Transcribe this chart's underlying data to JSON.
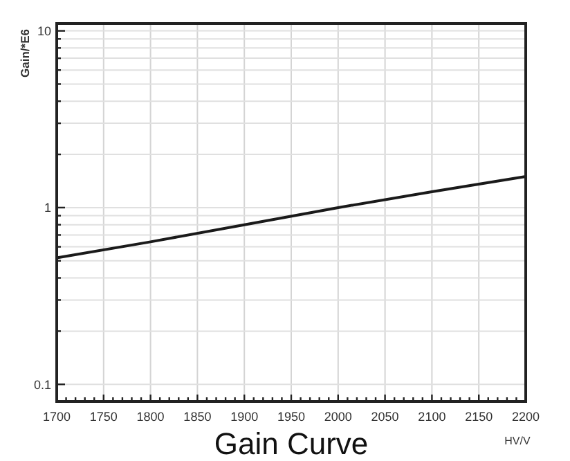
{
  "chart_data": {
    "type": "line",
    "title": "Gain Curve",
    "xlabel": "HV/V",
    "ylabel": "Gain/*E6",
    "x": [
      1700,
      1800,
      1900,
      2000,
      2100,
      2200
    ],
    "series": [
      {
        "color": "#1a1a1a",
        "values": [
          0.52,
          0.64,
          0.8,
          1.0,
          1.23,
          1.5
        ]
      }
    ],
    "xlim": [
      1700,
      2200
    ],
    "xticks": [
      1700,
      {
        "value": 1710,
        "label": null
      },
      {
        "value": 1720,
        "label": null
      },
      {
        "value": 1730,
        "label": null
      },
      {
        "value": 1740,
        "label": null
      },
      1750,
      {
        "value": 1760,
        "label": null
      },
      {
        "value": 1770,
        "label": null
      },
      {
        "value": 1780,
        "label": null
      },
      {
        "value": 1790,
        "label": null
      },
      1800,
      {
        "value": 1810,
        "label": null
      },
      {
        "value": 1820,
        "label": null
      },
      {
        "value": 1830,
        "label": null
      },
      {
        "value": 1840,
        "label": null
      },
      1850,
      {
        "value": 1860,
        "label": null
      },
      {
        "value": 1870,
        "label": null
      },
      {
        "value": 1880,
        "label": null
      },
      {
        "value": 1890,
        "label": null
      },
      1900,
      {
        "value": 1910,
        "label": null
      },
      {
        "value": 1920,
        "label": null
      },
      {
        "value": 1930,
        "label": null
      },
      {
        "value": 1940,
        "label": null
      },
      1950,
      {
        "value": 1960,
        "label": null
      },
      {
        "value": 1970,
        "label": null
      },
      {
        "value": 1980,
        "label": null
      },
      {
        "value": 1990,
        "label": null
      },
      2000,
      {
        "value": 2010,
        "label": null
      },
      {
        "value": 2020,
        "label": null
      },
      {
        "value": 2030,
        "label": null
      },
      {
        "value": 2040,
        "label": null
      },
      2050,
      {
        "value": 2060,
        "label": null
      },
      {
        "value": 2070,
        "label": null
      },
      {
        "value": 2080,
        "label": null
      },
      {
        "value": 2090,
        "label": null
      },
      2100,
      {
        "value": 2110,
        "label": null
      },
      {
        "value": 2120,
        "label": null
      },
      {
        "value": 2130,
        "label": null
      },
      {
        "value": 2140,
        "label": null
      },
      2150,
      {
        "value": 2160,
        "label": null
      },
      {
        "value": 2170,
        "label": null
      },
      {
        "value": 2180,
        "label": null
      },
      {
        "value": 2190,
        "label": null
      },
      2200
    ],
    "ylim": [
      0.08,
      11
    ],
    "log": true,
    "yticks": [
      {
        "value": 0.1,
        "label": "0.1"
      },
      {
        "value": 0.2,
        "label": null
      },
      {
        "value": 0.3,
        "label": null
      },
      {
        "value": 0.4,
        "label": null
      },
      {
        "value": 0.5,
        "label": null
      },
      {
        "value": 0.6,
        "label": null
      },
      {
        "value": 0.7,
        "label": null
      },
      {
        "value": 0.8,
        "label": null
      },
      {
        "value": 0.9,
        "label": null
      },
      1,
      {
        "value": 2,
        "label": null
      },
      {
        "value": 3,
        "label": null
      },
      {
        "value": 4,
        "label": null
      },
      {
        "value": 5,
        "label": null
      },
      {
        "value": 6,
        "label": null
      },
      {
        "value": 7,
        "label": null
      },
      {
        "value": 8,
        "label": null
      },
      {
        "value": 9,
        "label": null
      },
      10
    ],
    "grid": true,
    "marker": "none",
    "line_style": "solid"
  }
}
